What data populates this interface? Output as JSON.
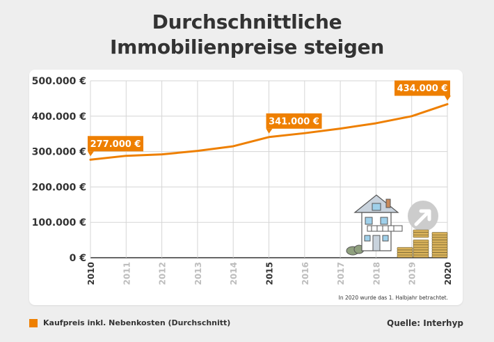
{
  "title_lines": [
    "Durchschnittliche",
    "Immobilienpreise steigen"
  ],
  "chart_data": {
    "type": "line",
    "title": "Durchschnittliche Immobilienpreise steigen",
    "x": [
      2010,
      2011,
      2012,
      2013,
      2014,
      2015,
      2016,
      2017,
      2018,
      2019,
      2020
    ],
    "x_tick_labels": [
      "2010",
      "2011",
      "2012",
      "2013",
      "2014",
      "2015",
      "2016",
      "2017",
      "2018",
      "2019",
      "2020"
    ],
    "highlighted_x": [
      "2010",
      "2015",
      "2020"
    ],
    "series": [
      {
        "name": "Kaufpreis inkl. Nebenkosten (Durchschnitt)",
        "values": [
          277000,
          288000,
          292000,
          302000,
          315000,
          341000,
          352000,
          365000,
          380000,
          400000,
          434000
        ],
        "color": "#ee7f00"
      }
    ],
    "ylim": [
      0,
      500000
    ],
    "y_ticks": [
      0,
      100000,
      200000,
      300000,
      400000,
      500000
    ],
    "y_tick_labels": [
      "0 €",
      "100.000 €",
      "200.000 €",
      "300.000 €",
      "400.000 €",
      "500.000 €"
    ],
    "annotations": [
      {
        "x": 2010,
        "y": 277000,
        "text": "277.000 €"
      },
      {
        "x": 2015,
        "y": 341000,
        "text": "341.000 €"
      },
      {
        "x": 2020,
        "y": 434000,
        "text": "434.000 €"
      }
    ],
    "note": "In 2020 wurde das 1. Halbjahr betrachtet.",
    "grid": true,
    "legend_position": "bottom-left"
  },
  "legend": {
    "label": "Kaufpreis inkl. Nebenkosten (Durchschnitt)",
    "color": "#ee7f00"
  },
  "source": "Quelle: Interhyp",
  "colors": {
    "accent": "#ee7f00",
    "text": "#333333",
    "grid": "#d5d5d5",
    "tick_muted": "#bdbdbd"
  },
  "icons": [
    "house-icon",
    "arrow-up-right-icon",
    "coin-stack-icon",
    "bush-icon"
  ]
}
